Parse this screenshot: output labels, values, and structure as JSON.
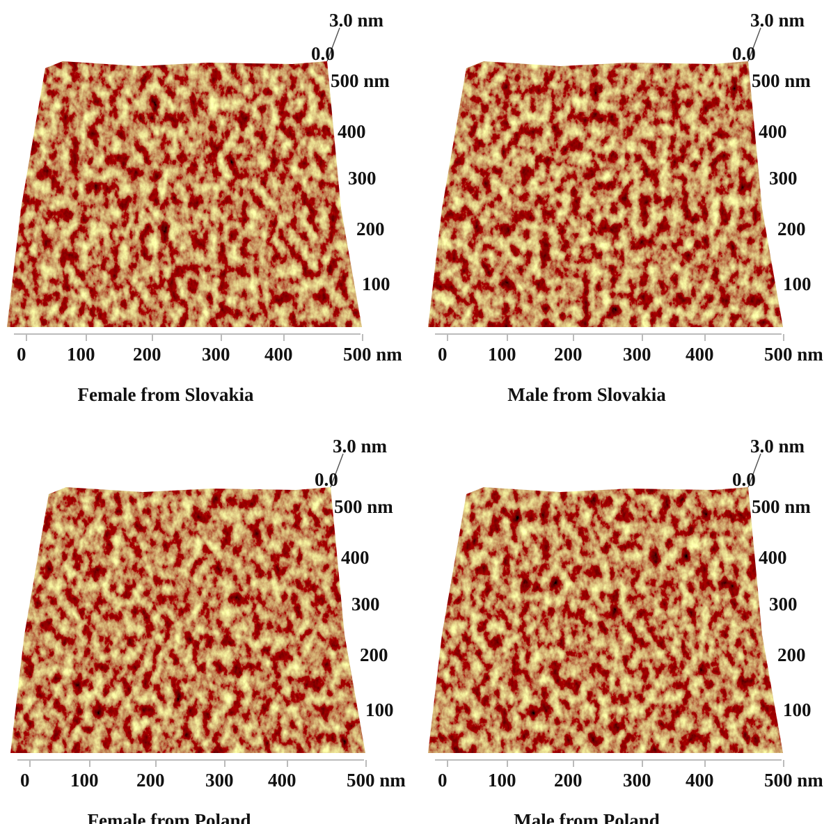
{
  "panels": [
    {
      "caption": "Female from Slovakia",
      "z_top": "3.0 nm",
      "z_bottom": "0.0",
      "x_ticks": [
        "0",
        "100",
        "200",
        "300",
        "400",
        "500 nm"
      ],
      "y_ticks": [
        "500 nm",
        "400",
        "300",
        "200",
        "100"
      ]
    },
    {
      "caption": "Male from Slovakia",
      "z_top": "3.0 nm",
      "z_bottom": "0.0",
      "x_ticks": [
        "0",
        "100",
        "200",
        "300",
        "400",
        "500 nm"
      ],
      "y_ticks": [
        "500 nm",
        "400",
        "300",
        "200",
        "100"
      ]
    },
    {
      "caption": "Female from Poland",
      "z_top": "3.0 nm",
      "z_bottom": "0.0",
      "x_ticks": [
        "0",
        "100",
        "200",
        "300",
        "400",
        "500 nm"
      ],
      "y_ticks": [
        "500 nm",
        "400",
        "300",
        "200",
        "100"
      ]
    },
    {
      "caption": "Male from Poland",
      "z_top": "3.0 nm",
      "z_bottom": "0.0",
      "x_ticks": [
        "0",
        "100",
        "200",
        "300",
        "400",
        "500 nm"
      ],
      "y_ticks": [
        "500 nm",
        "400",
        "300",
        "200",
        "100"
      ]
    }
  ]
}
